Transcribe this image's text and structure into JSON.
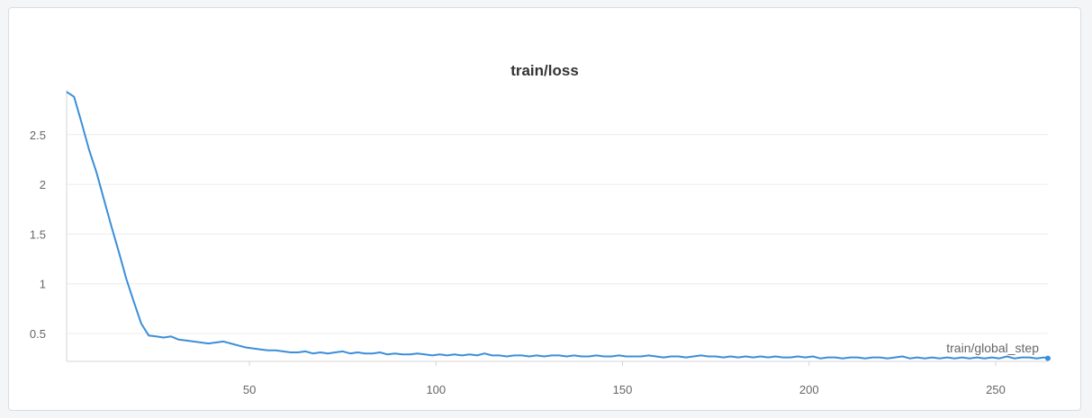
{
  "chart_data": {
    "type": "line",
    "title": "train/loss",
    "xlabel": "train/global_step",
    "ylabel": "",
    "xlim": [
      1,
      264
    ],
    "ylim": [
      0.22,
      2.95
    ],
    "xticks": [
      50,
      100,
      150,
      200,
      250
    ],
    "yticks": [
      0.5,
      1,
      1.5,
      2,
      2.5
    ],
    "ytick_labels": [
      "0.5",
      "1",
      "1.5",
      "2",
      "2.5"
    ],
    "grid": true,
    "series": [
      {
        "name": "",
        "color": "#3b8fd9",
        "x": [
          1,
          3,
          5,
          7,
          9,
          11,
          13,
          15,
          17,
          19,
          21,
          23,
          25,
          27,
          29,
          31,
          33,
          35,
          37,
          39,
          41,
          43,
          45,
          47,
          49,
          51,
          53,
          55,
          57,
          59,
          61,
          63,
          65,
          67,
          69,
          71,
          73,
          75,
          77,
          79,
          81,
          83,
          85,
          87,
          89,
          91,
          93,
          95,
          97,
          99,
          101,
          103,
          105,
          107,
          109,
          111,
          113,
          115,
          117,
          119,
          121,
          123,
          125,
          127,
          129,
          131,
          133,
          135,
          137,
          139,
          141,
          143,
          145,
          147,
          149,
          151,
          153,
          155,
          157,
          159,
          161,
          163,
          165,
          167,
          169,
          171,
          173,
          175,
          177,
          179,
          181,
          183,
          185,
          187,
          189,
          191,
          193,
          195,
          197,
          199,
          201,
          203,
          205,
          207,
          209,
          211,
          213,
          215,
          217,
          219,
          221,
          223,
          225,
          227,
          229,
          231,
          233,
          235,
          237,
          239,
          241,
          243,
          245,
          247,
          249,
          251,
          253,
          255,
          257,
          259,
          261,
          263,
          264
        ],
        "y": [
          2.93,
          2.88,
          2.62,
          2.35,
          2.12,
          1.85,
          1.58,
          1.32,
          1.05,
          0.82,
          0.6,
          0.48,
          0.47,
          0.46,
          0.47,
          0.44,
          0.43,
          0.42,
          0.41,
          0.4,
          0.41,
          0.42,
          0.4,
          0.38,
          0.36,
          0.35,
          0.34,
          0.33,
          0.33,
          0.32,
          0.31,
          0.31,
          0.32,
          0.3,
          0.31,
          0.3,
          0.31,
          0.32,
          0.3,
          0.31,
          0.3,
          0.3,
          0.31,
          0.29,
          0.3,
          0.29,
          0.29,
          0.3,
          0.29,
          0.28,
          0.29,
          0.28,
          0.29,
          0.28,
          0.29,
          0.28,
          0.3,
          0.28,
          0.28,
          0.27,
          0.28,
          0.28,
          0.27,
          0.28,
          0.27,
          0.28,
          0.28,
          0.27,
          0.28,
          0.27,
          0.27,
          0.28,
          0.27,
          0.27,
          0.28,
          0.27,
          0.27,
          0.27,
          0.28,
          0.27,
          0.26,
          0.27,
          0.27,
          0.26,
          0.27,
          0.28,
          0.27,
          0.27,
          0.26,
          0.27,
          0.26,
          0.27,
          0.26,
          0.27,
          0.26,
          0.27,
          0.26,
          0.26,
          0.27,
          0.26,
          0.27,
          0.25,
          0.26,
          0.26,
          0.25,
          0.26,
          0.26,
          0.25,
          0.26,
          0.26,
          0.25,
          0.26,
          0.27,
          0.25,
          0.26,
          0.25,
          0.26,
          0.25,
          0.26,
          0.25,
          0.26,
          0.25,
          0.26,
          0.25,
          0.26,
          0.25,
          0.27,
          0.25,
          0.26,
          0.26,
          0.25,
          0.26,
          0.25
        ]
      }
    ]
  }
}
